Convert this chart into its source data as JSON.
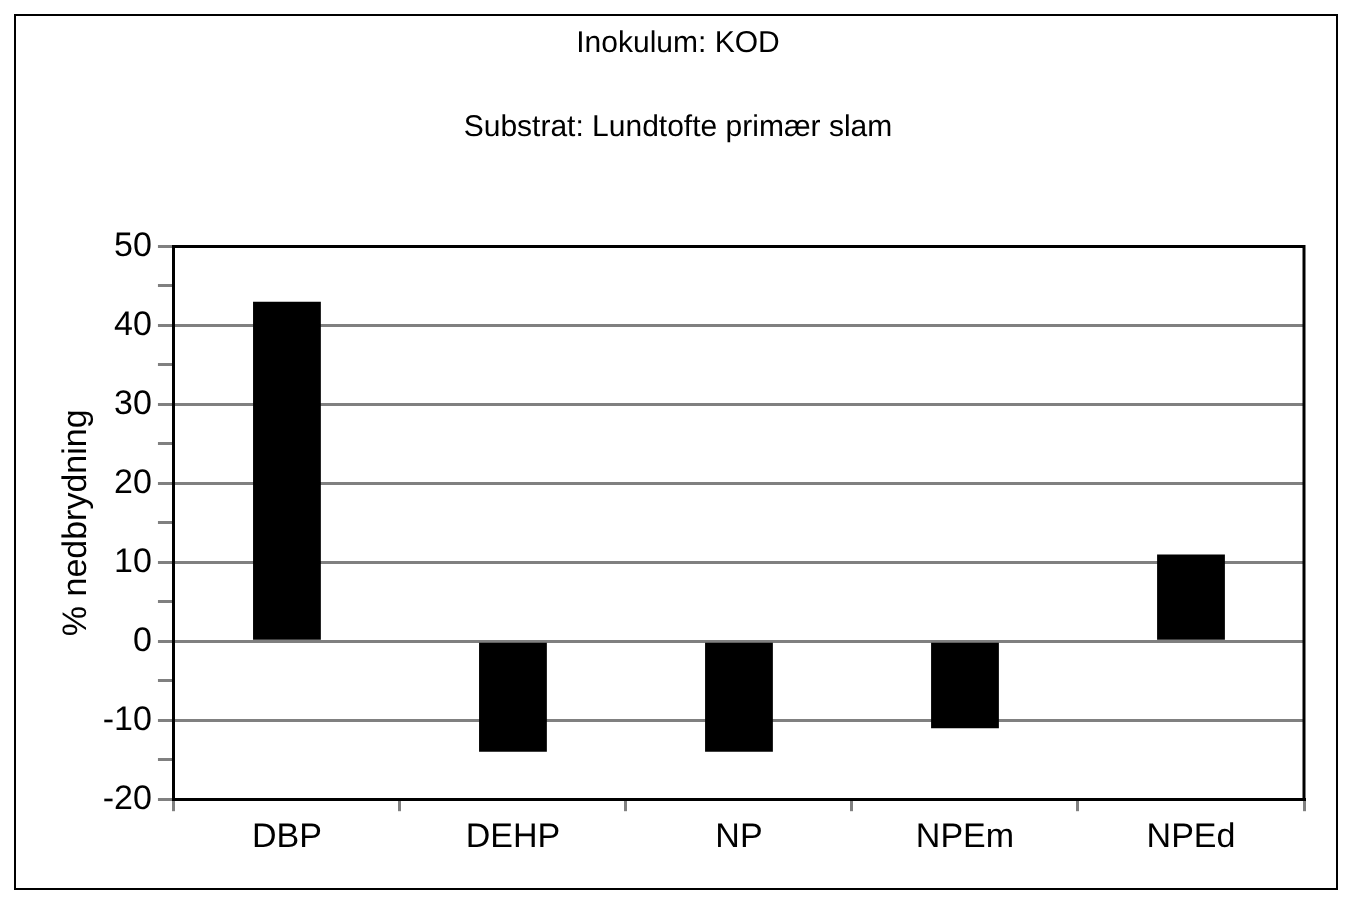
{
  "chart_data": {
    "type": "bar",
    "title": "Inokulum: KOD",
    "subtitle": "Substrat: Lundtofte primær slam",
    "ylabel": "% nedbrydning",
    "categories": [
      "DBP",
      "DEHP",
      "NP",
      "NPEm",
      "NPEd"
    ],
    "values": [
      43,
      -14,
      -14,
      -11,
      11
    ],
    "color": "#000000",
    "ylim": [
      -20,
      50
    ],
    "yticks": [
      -20,
      {
        "value": -15,
        "label": null
      },
      -10,
      {
        "value": -5,
        "label": null
      },
      0,
      {
        "value": 5,
        "label": null
      },
      10,
      {
        "value": 15,
        "label": null
      },
      20,
      {
        "value": 25,
        "label": null
      },
      30,
      {
        "value": 35,
        "label": null
      },
      40,
      {
        "value": 45,
        "label": null
      },
      50
    ],
    "grid": "y"
  }
}
